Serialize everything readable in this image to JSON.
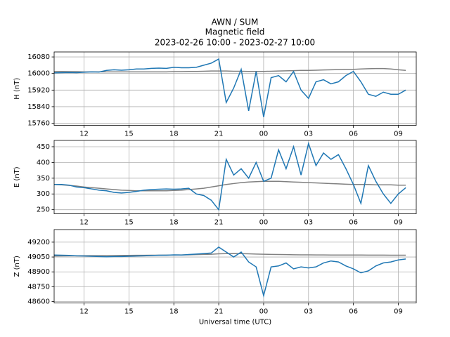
{
  "suptitle": [
    "AWN / SUM",
    "Magnetic field",
    "2023-02-26 10:00 - 2023-02-27 10:00"
  ],
  "chart_data": [
    {
      "type": "line",
      "ylabel": "H (nT)",
      "grid": true,
      "x": [
        10,
        10.5,
        11,
        11.5,
        12,
        12.5,
        13,
        13.5,
        14,
        14.5,
        15,
        15.5,
        16,
        16.5,
        17,
        17.5,
        18,
        18.5,
        19,
        19.5,
        20,
        20.5,
        21,
        21.5,
        22,
        22.5,
        23,
        23.5,
        24,
        24.5,
        25,
        25.5,
        26,
        26.5,
        27,
        27.5,
        28,
        28.5,
        29,
        29.5,
        30,
        30.5,
        31,
        31.5,
        32,
        32.5,
        33,
        33.5
      ],
      "xlim": [
        10,
        34.2
      ],
      "xticks": [
        12,
        15,
        18,
        21,
        {
          "value": 24,
          "label": "00"
        },
        {
          "value": 27,
          "label": "03"
        },
        {
          "value": 30,
          "label": "06"
        },
        {
          "value": 33,
          "label": "09"
        }
      ],
      "ylim": [
        15750,
        16104
      ],
      "yticks": [
        15760,
        15840,
        15920,
        16000,
        16080
      ],
      "series": [
        {
          "color": "#808080",
          "values": [
            16010,
            16010,
            16009,
            16009,
            16008,
            16008,
            16008,
            16008,
            16008,
            16008,
            16008,
            16008,
            16008,
            16008,
            16008,
            16008,
            16009,
            16009,
            16010,
            16010,
            16011,
            16012,
            16012,
            16012,
            16011,
            16011,
            16010,
            16010,
            16010,
            16011,
            16012,
            16013,
            16014,
            16015,
            16015,
            16016,
            16017,
            16018,
            16019,
            16020,
            16020,
            16022,
            16023,
            16024,
            16024,
            16022,
            16018,
            16015
          ]
        },
        {
          "color": "#1f77b4",
          "values": [
            16003,
            16004,
            16005,
            16004,
            16006,
            16008,
            16007,
            16015,
            16018,
            16016,
            16018,
            16022,
            16022,
            16025,
            16026,
            16025,
            16030,
            16028,
            16028,
            16030,
            16040,
            16050,
            16070,
            15860,
            15930,
            16020,
            15820,
            16010,
            15790,
            15980,
            15990,
            15960,
            16010,
            15920,
            15880,
            15960,
            15970,
            15950,
            15960,
            15990,
            16010,
            15960,
            15900,
            15890,
            15910,
            15900,
            15900,
            15920
          ]
        }
      ]
    },
    {
      "type": "line",
      "ylabel": "E (nT)",
      "grid": true,
      "x": [
        10,
        10.5,
        11,
        11.5,
        12,
        12.5,
        13,
        13.5,
        14,
        14.5,
        15,
        15.5,
        16,
        16.5,
        17,
        17.5,
        18,
        18.5,
        19,
        19.5,
        20,
        20.5,
        21,
        21.5,
        22,
        22.5,
        23,
        23.5,
        24,
        24.5,
        25,
        25.5,
        26,
        26.5,
        27,
        27.5,
        28,
        28.5,
        29,
        29.5,
        30,
        30.5,
        31,
        31.5,
        32,
        32.5,
        33,
        33.5
      ],
      "xlim": [
        10,
        34.2
      ],
      "xticks": [
        12,
        15,
        18,
        21,
        {
          "value": 24,
          "label": "00"
        },
        {
          "value": 27,
          "label": "03"
        },
        {
          "value": 30,
          "label": "06"
        },
        {
          "value": 33,
          "label": "09"
        }
      ],
      "ylim": [
        237,
        470
      ],
      "yticks": [
        250,
        300,
        350,
        400,
        450
      ],
      "series": [
        {
          "color": "#808080",
          "values": [
            330,
            329,
            327,
            325,
            322,
            320,
            318,
            316,
            314,
            312,
            311,
            310,
            310,
            310,
            310,
            310,
            311,
            312,
            314,
            316,
            318,
            322,
            326,
            330,
            333,
            336,
            338,
            339,
            340,
            340,
            340,
            339,
            338,
            337,
            336,
            335,
            334,
            333,
            332,
            331,
            330,
            330,
            330,
            329,
            329,
            329,
            328,
            328
          ]
        },
        {
          "color": "#1f77b4",
          "values": [
            330,
            330,
            328,
            322,
            320,
            316,
            312,
            310,
            305,
            303,
            305,
            308,
            312,
            314,
            315,
            316,
            315,
            316,
            318,
            300,
            295,
            280,
            250,
            410,
            360,
            380,
            350,
            400,
            340,
            350,
            440,
            380,
            450,
            360,
            460,
            390,
            430,
            410,
            425,
            380,
            330,
            270,
            390,
            340,
            300,
            270,
            300,
            320
          ]
        }
      ]
    },
    {
      "type": "line",
      "ylabel": "Z (nT)",
      "xlabel": "Universal time (UTC)",
      "grid": true,
      "x": [
        10,
        10.5,
        11,
        11.5,
        12,
        12.5,
        13,
        13.5,
        14,
        14.5,
        15,
        15.5,
        16,
        16.5,
        17,
        17.5,
        18,
        18.5,
        19,
        19.5,
        20,
        20.5,
        21,
        21.5,
        22,
        22.5,
        23,
        23.5,
        24,
        24.5,
        25,
        25.5,
        26,
        26.5,
        27,
        27.5,
        28,
        28.5,
        29,
        29.5,
        30,
        30.5,
        31,
        31.5,
        32,
        32.5,
        33,
        33.5
      ],
      "xlim": [
        10,
        34.2
      ],
      "xticks": [
        12,
        15,
        18,
        21,
        {
          "value": 24,
          "label": "00"
        },
        {
          "value": 27,
          "label": "03"
        },
        {
          "value": 30,
          "label": "06"
        },
        {
          "value": 33,
          "label": "09"
        }
      ],
      "ylim": [
        48586,
        49327
      ],
      "yticks": [
        48600,
        48750,
        48900,
        49050,
        49200
      ],
      "series": [
        {
          "color": "#808080",
          "values": [
            49060,
            49061,
            49062,
            49062,
            49063,
            49064,
            49064,
            49065,
            49065,
            49066,
            49066,
            49067,
            49067,
            49068,
            49068,
            49069,
            49070,
            49071,
            49072,
            49074,
            49076,
            49078,
            49082,
            49084,
            49085,
            49084,
            49082,
            49080,
            49078,
            49076,
            49075,
            49074,
            49073,
            49072,
            49072,
            49071,
            49071,
            49070,
            49070,
            49070,
            49070,
            49070,
            49069,
            49069,
            49069,
            49068,
            49068,
            49068
          ]
        },
        {
          "color": "#1f77b4",
          "values": [
            49070,
            49068,
            49066,
            49062,
            49060,
            49058,
            49055,
            49052,
            49055,
            49055,
            49058,
            49060,
            49062,
            49065,
            49068,
            49068,
            49072,
            49070,
            49075,
            49080,
            49085,
            49090,
            49150,
            49100,
            49050,
            49100,
            49000,
            48950,
            48660,
            48950,
            48960,
            48990,
            48930,
            48950,
            48940,
            48950,
            48990,
            49010,
            49000,
            48960,
            48930,
            48890,
            48910,
            48960,
            48990,
            49000,
            49020,
            49030
          ]
        }
      ]
    }
  ]
}
